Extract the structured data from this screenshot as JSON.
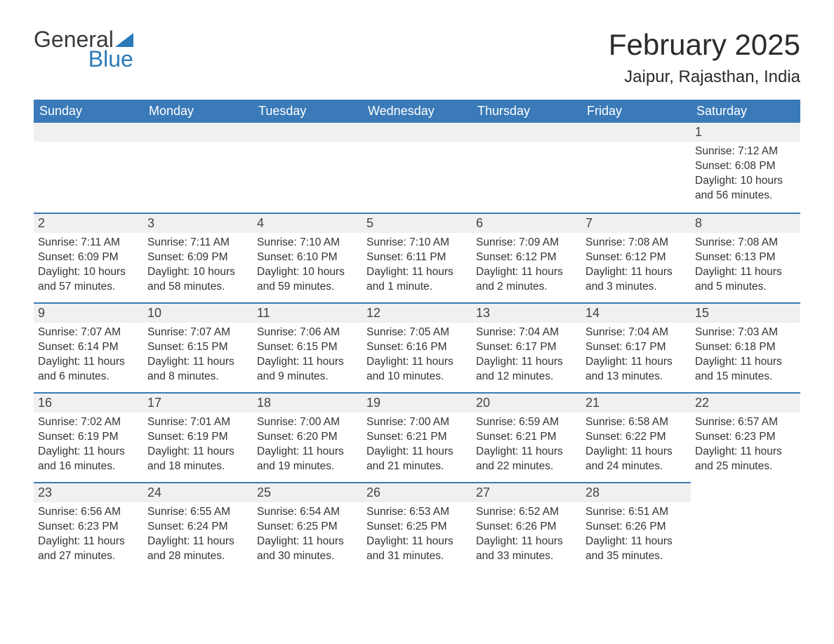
{
  "brand": {
    "word1": "General",
    "word2": "Blue"
  },
  "colors": {
    "header_bg": "#3a7ab8",
    "header_text": "#ffffff",
    "row_divider": "#3a7ab8",
    "daynum_bg": "#f0f0f0",
    "page_bg": "#ffffff",
    "text": "#333333",
    "brand_blue": "#2a7ab9"
  },
  "title": "February 2025",
  "location": "Jaipur, Rajasthan, India",
  "weekday_headers": [
    "Sunday",
    "Monday",
    "Tuesday",
    "Wednesday",
    "Thursday",
    "Friday",
    "Saturday"
  ],
  "labels": {
    "sunrise": "Sunrise: ",
    "sunset": "Sunset: ",
    "daylight": "Daylight: "
  },
  "weeks": [
    [
      null,
      null,
      null,
      null,
      null,
      null,
      {
        "n": "1",
        "sunrise": "7:12 AM",
        "sunset": "6:08 PM",
        "daylight": "10 hours and 56 minutes."
      }
    ],
    [
      {
        "n": "2",
        "sunrise": "7:11 AM",
        "sunset": "6:09 PM",
        "daylight": "10 hours and 57 minutes."
      },
      {
        "n": "3",
        "sunrise": "7:11 AM",
        "sunset": "6:09 PM",
        "daylight": "10 hours and 58 minutes."
      },
      {
        "n": "4",
        "sunrise": "7:10 AM",
        "sunset": "6:10 PM",
        "daylight": "10 hours and 59 minutes."
      },
      {
        "n": "5",
        "sunrise": "7:10 AM",
        "sunset": "6:11 PM",
        "daylight": "11 hours and 1 minute."
      },
      {
        "n": "6",
        "sunrise": "7:09 AM",
        "sunset": "6:12 PM",
        "daylight": "11 hours and 2 minutes."
      },
      {
        "n": "7",
        "sunrise": "7:08 AM",
        "sunset": "6:12 PM",
        "daylight": "11 hours and 3 minutes."
      },
      {
        "n": "8",
        "sunrise": "7:08 AM",
        "sunset": "6:13 PM",
        "daylight": "11 hours and 5 minutes."
      }
    ],
    [
      {
        "n": "9",
        "sunrise": "7:07 AM",
        "sunset": "6:14 PM",
        "daylight": "11 hours and 6 minutes."
      },
      {
        "n": "10",
        "sunrise": "7:07 AM",
        "sunset": "6:15 PM",
        "daylight": "11 hours and 8 minutes."
      },
      {
        "n": "11",
        "sunrise": "7:06 AM",
        "sunset": "6:15 PM",
        "daylight": "11 hours and 9 minutes."
      },
      {
        "n": "12",
        "sunrise": "7:05 AM",
        "sunset": "6:16 PM",
        "daylight": "11 hours and 10 minutes."
      },
      {
        "n": "13",
        "sunrise": "7:04 AM",
        "sunset": "6:17 PM",
        "daylight": "11 hours and 12 minutes."
      },
      {
        "n": "14",
        "sunrise": "7:04 AM",
        "sunset": "6:17 PM",
        "daylight": "11 hours and 13 minutes."
      },
      {
        "n": "15",
        "sunrise": "7:03 AM",
        "sunset": "6:18 PM",
        "daylight": "11 hours and 15 minutes."
      }
    ],
    [
      {
        "n": "16",
        "sunrise": "7:02 AM",
        "sunset": "6:19 PM",
        "daylight": "11 hours and 16 minutes."
      },
      {
        "n": "17",
        "sunrise": "7:01 AM",
        "sunset": "6:19 PM",
        "daylight": "11 hours and 18 minutes."
      },
      {
        "n": "18",
        "sunrise": "7:00 AM",
        "sunset": "6:20 PM",
        "daylight": "11 hours and 19 minutes."
      },
      {
        "n": "19",
        "sunrise": "7:00 AM",
        "sunset": "6:21 PM",
        "daylight": "11 hours and 21 minutes."
      },
      {
        "n": "20",
        "sunrise": "6:59 AM",
        "sunset": "6:21 PM",
        "daylight": "11 hours and 22 minutes."
      },
      {
        "n": "21",
        "sunrise": "6:58 AM",
        "sunset": "6:22 PM",
        "daylight": "11 hours and 24 minutes."
      },
      {
        "n": "22",
        "sunrise": "6:57 AM",
        "sunset": "6:23 PM",
        "daylight": "11 hours and 25 minutes."
      }
    ],
    [
      {
        "n": "23",
        "sunrise": "6:56 AM",
        "sunset": "6:23 PM",
        "daylight": "11 hours and 27 minutes."
      },
      {
        "n": "24",
        "sunrise": "6:55 AM",
        "sunset": "6:24 PM",
        "daylight": "11 hours and 28 minutes."
      },
      {
        "n": "25",
        "sunrise": "6:54 AM",
        "sunset": "6:25 PM",
        "daylight": "11 hours and 30 minutes."
      },
      {
        "n": "26",
        "sunrise": "6:53 AM",
        "sunset": "6:25 PM",
        "daylight": "11 hours and 31 minutes."
      },
      {
        "n": "27",
        "sunrise": "6:52 AM",
        "sunset": "6:26 PM",
        "daylight": "11 hours and 33 minutes."
      },
      {
        "n": "28",
        "sunrise": "6:51 AM",
        "sunset": "6:26 PM",
        "daylight": "11 hours and 35 minutes."
      },
      null
    ]
  ]
}
